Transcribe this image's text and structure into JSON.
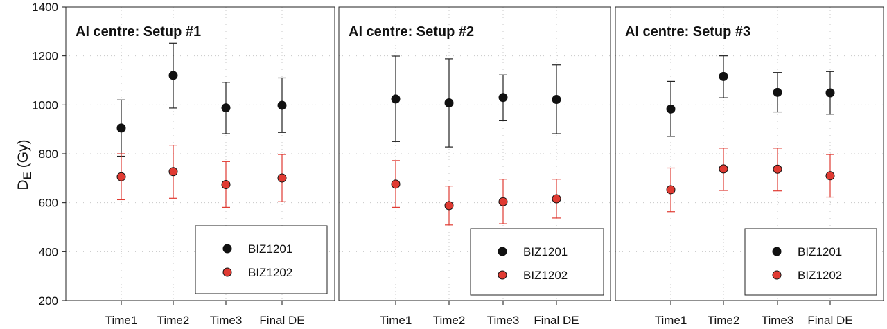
{
  "chart_data": {
    "type": "scatter",
    "ylabel_main": "D",
    "ylabel_sub": "E",
    "ylabel_unit": " (Gy)",
    "ylim": [
      200,
      1400
    ],
    "yticks": [
      200,
      400,
      600,
      800,
      1000,
      1200,
      1400
    ],
    "grid": true,
    "categories": [
      "Time1",
      "Time2",
      "Time3",
      "Final DE"
    ],
    "series_styles": [
      {
        "name": "BIZ1201",
        "color": "#111111",
        "bar_color": "#222222"
      },
      {
        "name": "BIZ1202",
        "color": "#e03a32",
        "bar_color": "#e03a32"
      }
    ],
    "panels": [
      {
        "title": "Al centre: Setup #1",
        "legend_position": "bottom-right",
        "series": [
          {
            "name": "BIZ1201",
            "values": [
              905,
              1120,
              988,
              998
            ],
            "err_low": [
              790,
              987,
              882,
              887
            ],
            "err_high": [
              1020,
              1252,
              1092,
              1110
            ]
          },
          {
            "name": "BIZ1202",
            "values": [
              706,
              727,
              674,
              701
            ],
            "err_low": [
              612,
              618,
              581,
              604
            ],
            "err_high": [
              800,
              835,
              768,
              797
            ]
          }
        ]
      },
      {
        "title": "Al centre: Setup #2",
        "legend_position": "bottom-right",
        "series": [
          {
            "name": "BIZ1201",
            "values": [
              1024,
              1008,
              1030,
              1022
            ],
            "err_low": [
              850,
              828,
              937,
              882
            ],
            "err_high": [
              1199,
              1188,
              1122,
              1163
            ]
          },
          {
            "name": "BIZ1202",
            "values": [
              676,
              588,
              604,
              616
            ],
            "err_low": [
              581,
              509,
              514,
              537
            ],
            "err_high": [
              772,
              668,
              696,
              696
            ]
          }
        ]
      },
      {
        "title": "Al centre: Setup #3",
        "legend_position": "bottom-right",
        "series": [
          {
            "name": "BIZ1201",
            "values": [
              983,
              1116,
              1051,
              1049
            ],
            "err_low": [
              871,
              1029,
              971,
              962
            ],
            "err_high": [
              1096,
              1200,
              1132,
              1136
            ]
          },
          {
            "name": "BIZ1202",
            "values": [
              653,
              738,
              737,
              710
            ],
            "err_low": [
              563,
              650,
              648,
              623
            ],
            "err_high": [
              742,
              823,
              823,
              797
            ]
          }
        ]
      }
    ]
  }
}
